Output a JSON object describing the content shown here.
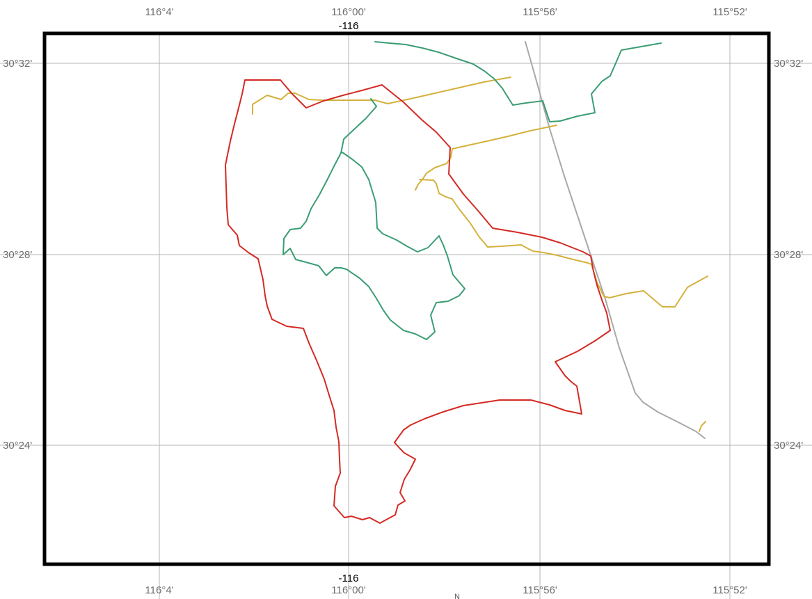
{
  "map": {
    "top_center_label": "-116",
    "bottom_center_label": "-116",
    "north_label": "N",
    "longitude_ticks": [
      {
        "label": "116°4'"
      },
      {
        "label": "116°00'"
      },
      {
        "label": "115°56'"
      },
      {
        "label": "115°52'"
      }
    ],
    "latitude_ticks": [
      {
        "label": "30°32'"
      },
      {
        "label": "30°28'"
      },
      {
        "label": "30°24'"
      }
    ],
    "colors": {
      "boundary": "#d42a24",
      "stream": "#3a9d73",
      "road": "#d4b13c",
      "line": "#a8a8a8",
      "grid": "#b4b4b4",
      "frame": "#000000"
    },
    "features": [
      {
        "name": "boundary-red",
        "color_key": "boundary"
      },
      {
        "name": "stream-green-north",
        "color_key": "stream"
      },
      {
        "name": "stream-green-loop",
        "color_key": "stream"
      },
      {
        "name": "road-yellow-north",
        "color_key": "road"
      },
      {
        "name": "road-yellow-middle",
        "color_key": "road"
      },
      {
        "name": "road-yellow-south",
        "color_key": "road"
      },
      {
        "name": "road-yellow-stub",
        "color_key": "road"
      },
      {
        "name": "line-gray",
        "color_key": "line"
      }
    ]
  }
}
